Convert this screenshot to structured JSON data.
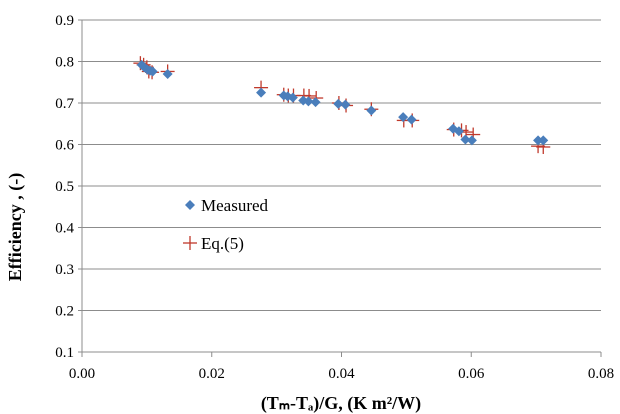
{
  "chart_data": {
    "type": "scatter",
    "xlabel": "(Tₘ-Tₐ)/G, (K m²/W)",
    "ylabel": "Efficiency , (-)",
    "xlim": [
      0,
      0.08
    ],
    "ylim": [
      0.1,
      0.9
    ],
    "x_ticks": [
      "0.00",
      "0.02",
      "0.04",
      "0.06",
      "0.08"
    ],
    "y_ticks": [
      "0.1",
      "0.2",
      "0.3",
      "0.4",
      "0.5",
      "0.6",
      "0.7",
      "0.8",
      "0.9"
    ],
    "grid": "horizontal",
    "legend_position": "inside-left",
    "series": [
      {
        "name": "Measured",
        "marker": "diamond",
        "color": "#4a7ebb",
        "points": [
          [
            0.0092,
            0.792
          ],
          [
            0.0096,
            0.786
          ],
          [
            0.0101,
            0.78
          ],
          [
            0.0105,
            0.778
          ],
          [
            0.0109,
            0.776
          ],
          [
            0.0132,
            0.77
          ],
          [
            0.0276,
            0.725
          ],
          [
            0.0311,
            0.718
          ],
          [
            0.0317,
            0.716
          ],
          [
            0.0325,
            0.713
          ],
          [
            0.0341,
            0.706
          ],
          [
            0.0349,
            0.704
          ],
          [
            0.036,
            0.702
          ],
          [
            0.0395,
            0.698
          ],
          [
            0.0406,
            0.696
          ],
          [
            0.0446,
            0.682
          ],
          [
            0.0495,
            0.666
          ],
          [
            0.0508,
            0.66
          ],
          [
            0.0572,
            0.638
          ],
          [
            0.0581,
            0.632
          ],
          [
            0.0591,
            0.612
          ],
          [
            0.0601,
            0.61
          ],
          [
            0.0703,
            0.61
          ],
          [
            0.0711,
            0.61
          ]
        ]
      },
      {
        "name": "Eq.(5)",
        "marker": "plus",
        "color": "#c0392b",
        "points": [
          [
            0.009,
            0.796
          ],
          [
            0.0095,
            0.792
          ],
          [
            0.01,
            0.786
          ],
          [
            0.0103,
            0.776
          ],
          [
            0.0108,
            0.774
          ],
          [
            0.0132,
            0.776
          ],
          [
            0.0276,
            0.737
          ],
          [
            0.0311,
            0.72
          ],
          [
            0.0318,
            0.718
          ],
          [
            0.0326,
            0.718
          ],
          [
            0.0342,
            0.718
          ],
          [
            0.035,
            0.717
          ],
          [
            0.0361,
            0.712
          ],
          [
            0.0396,
            0.7
          ],
          [
            0.0407,
            0.694
          ],
          [
            0.0446,
            0.685
          ],
          [
            0.0496,
            0.658
          ],
          [
            0.0509,
            0.658
          ],
          [
            0.0573,
            0.636
          ],
          [
            0.0585,
            0.634
          ],
          [
            0.0592,
            0.63
          ],
          [
            0.0603,
            0.624
          ],
          [
            0.0703,
            0.596
          ],
          [
            0.0711,
            0.594
          ]
        ]
      }
    ]
  }
}
